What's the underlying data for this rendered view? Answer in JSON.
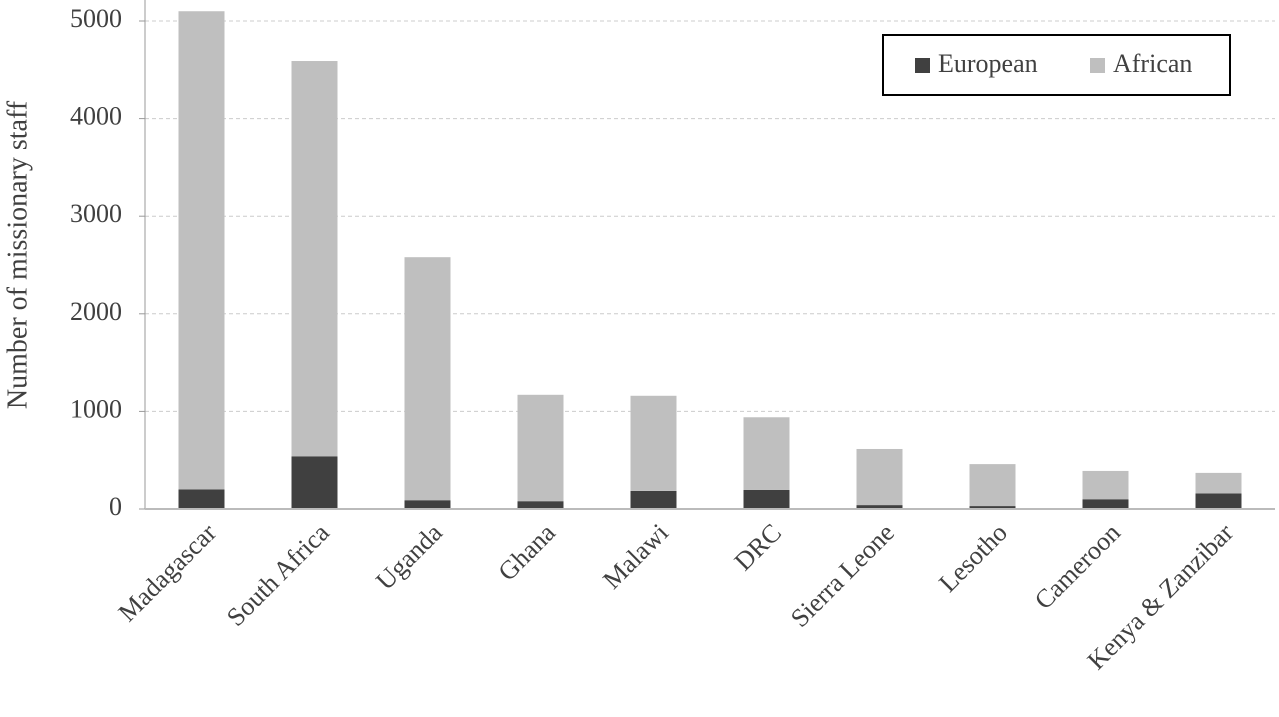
{
  "chart_data": {
    "type": "stacked_bar",
    "y_label": "Number of missionary staff",
    "categories": [
      "Madagascar",
      "South Africa",
      "Uganda",
      "Ghana",
      "Malawi",
      "DRC",
      "Sierra Leone",
      "Lesotho",
      "Cameroon",
      "Kenya & Zanzibar"
    ],
    "series": [
      {
        "name": "European",
        "color": "#404040",
        "values": [
          200,
          540,
          90,
          80,
          185,
          195,
          40,
          30,
          100,
          160
        ]
      },
      {
        "name": "African",
        "color": "#bfbfbf",
        "values": [
          4900,
          4050,
          2490,
          1090,
          975,
          745,
          575,
          430,
          290,
          210
        ]
      }
    ],
    "ylim": [
      0,
      5000
    ],
    "yticks": [
      0,
      1000,
      2000,
      3000,
      4000,
      5000
    ],
    "grid": true,
    "legend": "upper right"
  }
}
